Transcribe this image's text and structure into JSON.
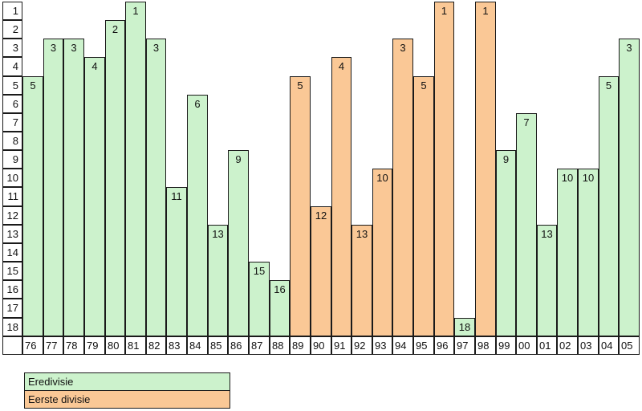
{
  "chart_data": {
    "type": "bar",
    "title": "",
    "description": "League final position per season, inverted scale (1 = champion, 18 = bottom)",
    "categories": [
      "76",
      "77",
      "78",
      "79",
      "80",
      "81",
      "82",
      "83",
      "84",
      "85",
      "86",
      "87",
      "88",
      "89",
      "90",
      "91",
      "92",
      "93",
      "94",
      "95",
      "96",
      "97",
      "98",
      "99",
      "00",
      "01",
      "02",
      "03",
      "04",
      "05"
    ],
    "values": [
      5,
      3,
      3,
      4,
      2,
      1,
      3,
      11,
      6,
      13,
      9,
      15,
      16,
      5,
      12,
      4,
      13,
      10,
      3,
      5,
      1,
      18,
      1,
      9,
      7,
      13,
      10,
      10,
      5,
      3
    ],
    "divisions": [
      "eredivisie",
      "eredivisie",
      "eredivisie",
      "eredivisie",
      "eredivisie",
      "eredivisie",
      "eredivisie",
      "eredivisie",
      "eredivisie",
      "eredivisie",
      "eredivisie",
      "eredivisie",
      "eredivisie",
      "eerste-divisie",
      "eerste-divisie",
      "eerste-divisie",
      "eerste-divisie",
      "eerste-divisie",
      "eerste-divisie",
      "eerste-divisie",
      "eerste-divisie",
      "eredivisie",
      "eerste-divisie",
      "eredivisie",
      "eredivisie",
      "eredivisie",
      "eredivisie",
      "eredivisie",
      "eredivisie",
      "eredivisie"
    ],
    "y_ticks": [
      "1",
      "2",
      "3",
      "4",
      "5",
      "6",
      "7",
      "8",
      "9",
      "10",
      "11",
      "12",
      "13",
      "14",
      "15",
      "16",
      "17",
      "18"
    ],
    "ylim": [
      18,
      1
    ],
    "xlabel": "",
    "ylabel": "",
    "grid": "cell-borders",
    "legend_position": "bottom-left",
    "legend": [
      {
        "label": "Eredivisie",
        "key": "eredivisie",
        "color": "#CCF2CC"
      },
      {
        "label": "Eerste divisie",
        "key": "eerste-divisie",
        "color": "#FAC896"
      }
    ],
    "colors": {
      "eredivisie": "#CCF2CC",
      "eerste-divisie": "#FAC896",
      "border": "#1a1a1a",
      "background": "#ffffff"
    }
  }
}
